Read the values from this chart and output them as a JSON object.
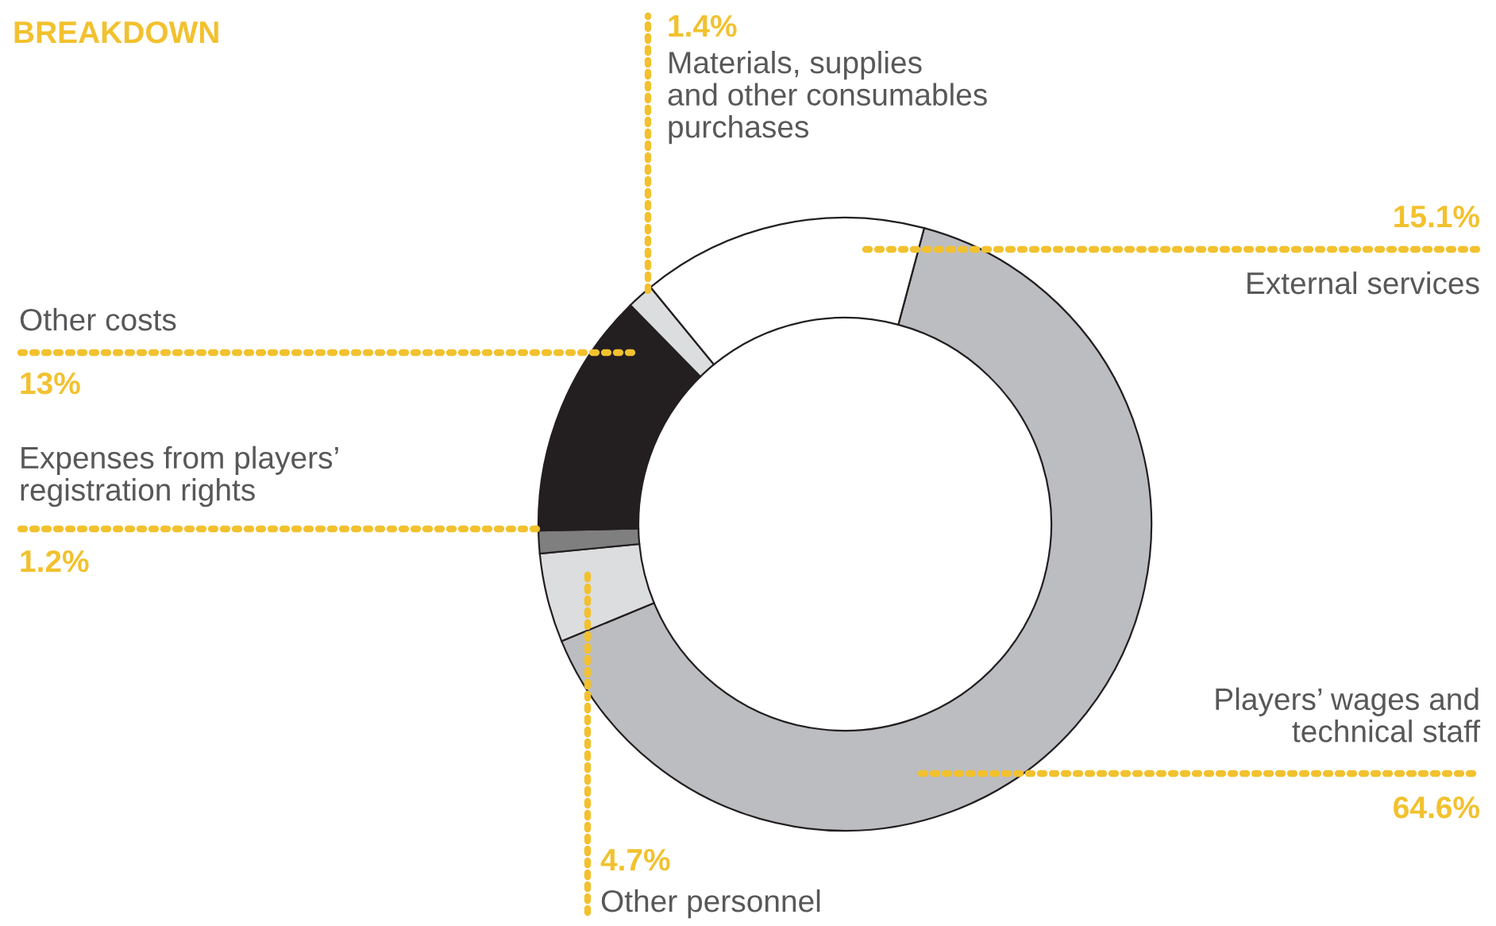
{
  "chart_data": {
    "type": "donut",
    "title": "BREAKDOWN",
    "categories": [
      "Players’ wages and\ntechnical staff",
      "Other personnel",
      "Expenses from players’\nregistration rights",
      "Other costs",
      "Materials, supplies\nand other consumables\npurchases",
      "External services"
    ],
    "values": [
      64.6,
      4.7,
      1.2,
      13,
      1.4,
      15.1
    ],
    "value_labels": [
      "64.6%",
      "4.7%",
      "1.2%",
      "13%",
      "1.4%",
      "15.1%"
    ],
    "colors": [
      "#bcbdc0",
      "#dcdddf",
      "#7f7f80",
      "#231f20",
      "#dcdddf",
      "#ffffff"
    ]
  }
}
